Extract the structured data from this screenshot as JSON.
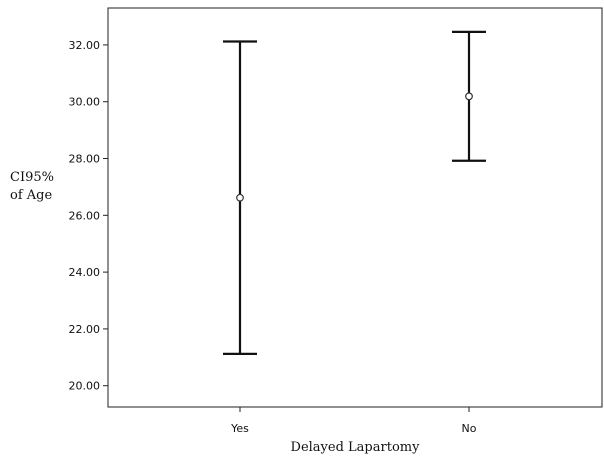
{
  "chart_data": {
    "type": "errorbar",
    "categories": [
      "Yes",
      "No"
    ],
    "series": [
      {
        "values": [
          {
            "mean": 26.62,
            "lower": 21.12,
            "upper": 32.12
          },
          {
            "mean": 30.19,
            "lower": 27.92,
            "upper": 32.46
          }
        ]
      }
    ],
    "title": "",
    "xlabel": "Delayed Lapartomy",
    "ylabel": [
      "CI95%",
      "of Age"
    ],
    "ylim": [
      19.25,
      33.3
    ],
    "yticks": [
      "20.00",
      "22.00",
      "24.00",
      "26.00",
      "28.00",
      "30.00",
      "32.00"
    ],
    "grid": false,
    "legend": "none",
    "colors": {
      "axis": "#222222",
      "error_bar": "#111111",
      "marker": "#333333",
      "text": "#111111"
    }
  }
}
